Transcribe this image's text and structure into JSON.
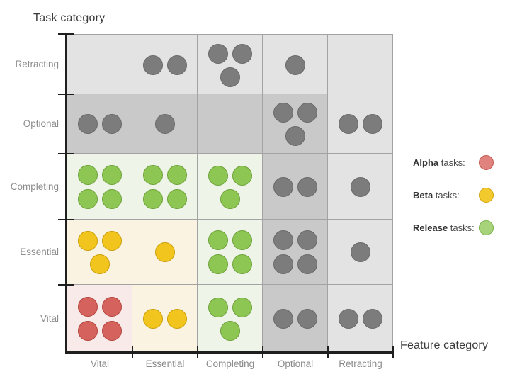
{
  "legend": {
    "items": [
      {
        "name": "alpha",
        "bold": "Alpha",
        "rest": " tasks:",
        "fill": "#e0827d",
        "border": "#c2574f"
      },
      {
        "name": "beta",
        "bold": "Beta",
        "rest": " tasks:",
        "fill": "#f2ca2e",
        "border": "#d2a40e"
      },
      {
        "name": "release",
        "bold": "Release",
        "rest": " tasks:",
        "fill": "#a7d37b",
        "border": "#76b045"
      }
    ]
  },
  "chart_data": {
    "type": "heatmap",
    "subtype": "matrix-dot-plot",
    "title": "",
    "xlabel": "Feature category",
    "ylabel": "Task category",
    "x_categories": [
      "Vital",
      "Essential",
      "Completing",
      "Optional",
      "Retracting"
    ],
    "y_categories": [
      "Retracting",
      "Optional",
      "Completing",
      "Essential",
      "Vital"
    ],
    "grid": "5x5, y rows listed top to bottom",
    "cell_dot_counts": [
      [
        0,
        2,
        3,
        1,
        0
      ],
      [
        2,
        1,
        0,
        3,
        2
      ],
      [
        4,
        4,
        3,
        2,
        1
      ],
      [
        3,
        1,
        4,
        4,
        1
      ],
      [
        4,
        2,
        3,
        2,
        2
      ]
    ],
    "cell_dot_colors": [
      [
        "gray",
        "gray",
        "gray",
        "gray",
        "gray"
      ],
      [
        "gray",
        "gray",
        "gray",
        "gray",
        "gray"
      ],
      [
        "green",
        "green",
        "green",
        "gray",
        "gray"
      ],
      [
        "yellow",
        "yellow",
        "green",
        "gray",
        "gray"
      ],
      [
        "red",
        "yellow",
        "green",
        "gray",
        "gray"
      ]
    ],
    "cell_backgrounds": [
      [
        "light",
        "light",
        "light",
        "light",
        "light"
      ],
      [
        "dark",
        "dark",
        "dark",
        "dark",
        "light"
      ],
      [
        "green",
        "green",
        "green",
        "dark",
        "light"
      ],
      [
        "yellow",
        "yellow",
        "green",
        "dark",
        "light"
      ],
      [
        "pink",
        "yellow",
        "green",
        "dark",
        "light"
      ]
    ],
    "dot_palette": {
      "gray": {
        "fill": "#7c7c7c",
        "border": "#696969"
      },
      "red": {
        "fill": "#d5625c",
        "border": "#b2443d"
      },
      "yellow": {
        "fill": "#f1c51d",
        "border": "#c99e06"
      },
      "green": {
        "fill": "#8ec653",
        "border": "#6da038"
      }
    },
    "background_palette": {
      "light": "#e3e3e3",
      "dark": "#c9c9c9",
      "green": "#eef4e8",
      "yellow": "#faf3e1",
      "pink": "#f7eae9"
    },
    "legend_mapping": {
      "red": "Alpha tasks",
      "yellow": "Beta tasks",
      "green": "Release tasks"
    }
  }
}
